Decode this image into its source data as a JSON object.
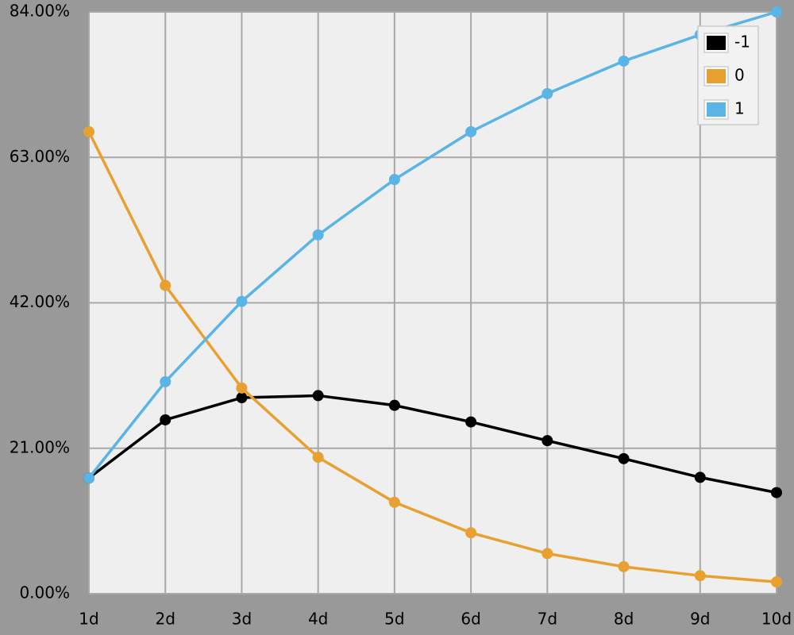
{
  "chart_data": {
    "type": "line",
    "categories": [
      "1d",
      "2d",
      "3d",
      "4d",
      "5d",
      "6d",
      "7d",
      "8d",
      "9d",
      "10d"
    ],
    "series": [
      {
        "name": "-1",
        "color": "#000000",
        "values": [
          16.7,
          25.1,
          28.3,
          28.6,
          27.2,
          24.8,
          22.1,
          19.5,
          16.8,
          14.6
        ]
      },
      {
        "name": "0",
        "color": "#e8a030",
        "values": [
          66.7,
          44.5,
          29.7,
          19.7,
          13.2,
          8.8,
          5.8,
          3.9,
          2.6,
          1.7
        ]
      },
      {
        "name": "1",
        "color": "#5ab4e6",
        "values": [
          16.7,
          30.6,
          42.2,
          51.8,
          59.8,
          66.7,
          72.2,
          76.9,
          80.7,
          84.0
        ]
      }
    ],
    "ylim": [
      0,
      84
    ],
    "yticks": [
      {
        "value": 0,
        "label": "0.00%"
      },
      {
        "value": 21,
        "label": "21.00%"
      },
      {
        "value": 42,
        "label": "42.00%"
      },
      {
        "value": 63,
        "label": "63.00%"
      },
      {
        "value": 84,
        "label": "84.00%"
      }
    ],
    "grid": true,
    "legend": "upper right"
  }
}
